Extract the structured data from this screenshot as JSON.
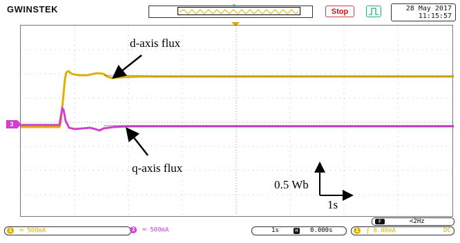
{
  "header": {
    "brand": "GWINSTEK",
    "stop_label": "Stop",
    "trigger_icon": "rising-edge-pulse-icon",
    "date": "28 May 2017",
    "time": "11:15:57"
  },
  "annotations": {
    "d_axis": "d-axis flux",
    "q_axis": "q-axis flux",
    "scale_y": "0.5 Wb",
    "scale_x": "1s"
  },
  "screen": {
    "ch3_marker": "3"
  },
  "filter": {
    "label": "<2Hz"
  },
  "bottom": {
    "ch1_num": "1",
    "ch1_coupling": "DC",
    "ch1_scale": "500mA",
    "ch3_num": "3",
    "ch3_scale": "500mA",
    "timebase": "1s",
    "h_label": "H",
    "h_position": "0.000s",
    "trig_num": "1",
    "trig_slope": "rising",
    "trig_level": "8.00mA",
    "trig_coupling": "DC"
  },
  "colors": {
    "ch1": "#e0b000",
    "ch3": "#d040d0",
    "stop": "#d01010",
    "trigger_icon": "#1db07a"
  }
}
